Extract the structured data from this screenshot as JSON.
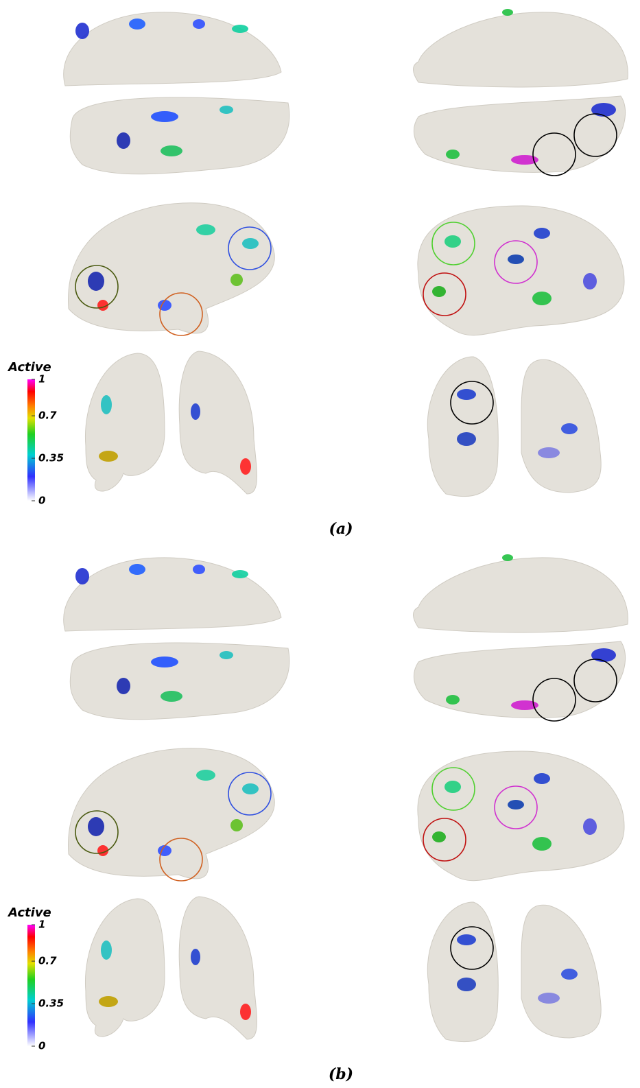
{
  "panels": [
    {
      "label": "(a)",
      "colorbar": {
        "title": "Active",
        "ticks": [
          1,
          0.7,
          0.35,
          0
        ]
      }
    },
    {
      "label": "(b)",
      "colorbar": {
        "title": "Active",
        "ticks": [
          1,
          0.7,
          0.35,
          0
        ]
      }
    }
  ]
}
